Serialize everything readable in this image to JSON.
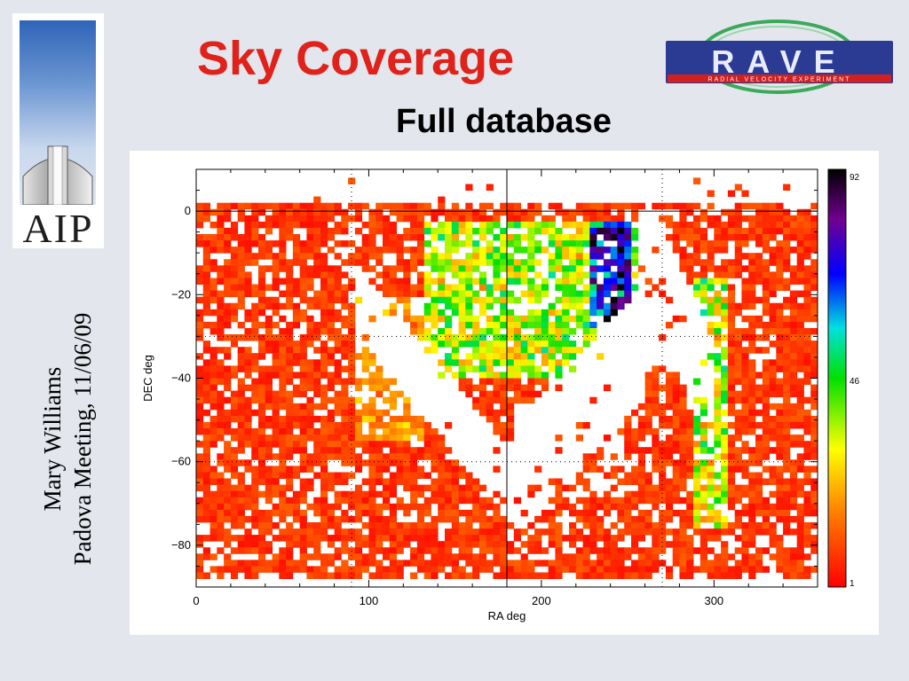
{
  "slide": {
    "title": "Sky Coverage",
    "subtitle": "Full database",
    "author": "Mary Williams",
    "meeting": "Padova Meeting, 11/06/09"
  },
  "logos": {
    "aip_text": "AIP",
    "rave_text": "RAVE",
    "rave_tagline": "RADIAL VELOCITY EXPERIMENT"
  },
  "colors": {
    "title": "#e0221a",
    "background": "#e3e6ed",
    "rave_blue": "#2b3a93",
    "rave_red": "#d22020",
    "rave_ring": "#3aaa5a"
  },
  "chart_data": {
    "type": "heatmap",
    "xlabel": "RA deg",
    "ylabel": "DEC deg",
    "x_ticks": [
      0,
      100,
      200,
      300
    ],
    "y_ticks": [
      0,
      -20,
      -40,
      -60,
      -80
    ],
    "xlim": [
      0,
      360
    ],
    "ylim": [
      -90,
      10
    ],
    "colorbar": {
      "min": 1,
      "mid": 46,
      "max": 92,
      "labels": [
        "92",
        "46",
        "1"
      ]
    },
    "reference_lines": {
      "solid_ra": 180,
      "dotted_ra": [
        90,
        270
      ],
      "dotted_dec": [
        -30,
        -60
      ],
      "solid_dec": 0
    },
    "grid": false,
    "description_of_cells": "Star counts per RA/DEC cell; most cells 1-20 (red/orange), dense regions near RA 140-250 Dec -5 to -35 reach 40-80 (green/blue); empty band along galactic plane."
  }
}
